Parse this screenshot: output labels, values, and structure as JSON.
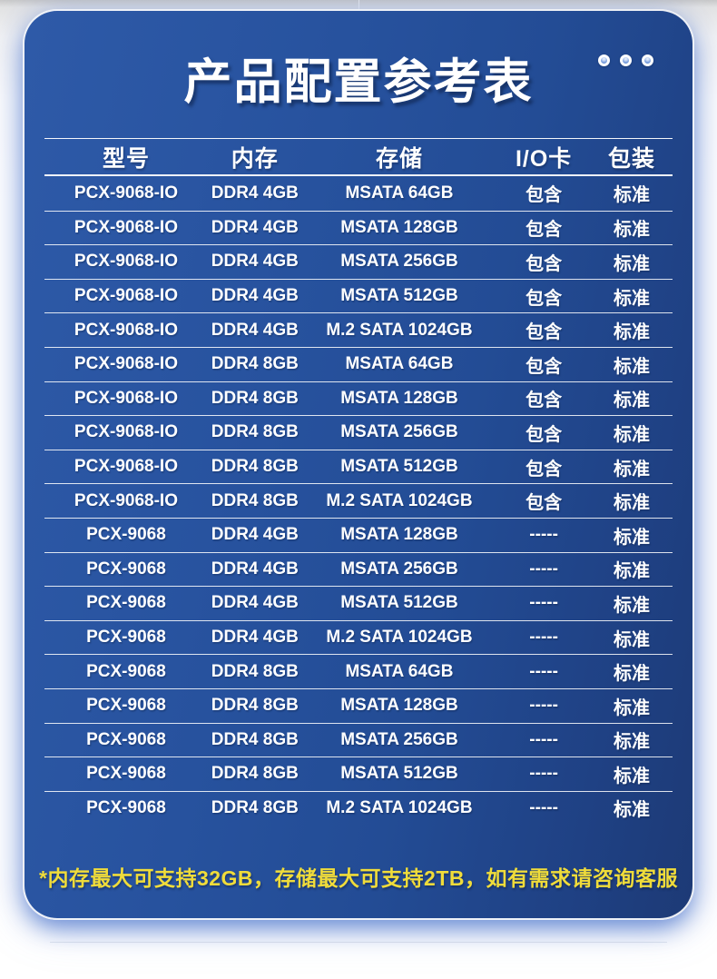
{
  "title": "产品配置参考表",
  "decoration": {
    "dot_icon_count": 3
  },
  "colors": {
    "card_blue": "#27529E",
    "card_blue_dark": "#1D3A76",
    "card_blue_light": "#2E5AA8",
    "line_white": "#FFFFFF",
    "footnote_yellow": "#F0DC3A",
    "page_top_grey": "#C9C9C9"
  },
  "table": {
    "headers": [
      "型号",
      "内存",
      "存储",
      "I/O卡",
      "包装"
    ],
    "rows": [
      [
        "PCX-9068-IO",
        "DDR4 4GB",
        "MSATA 64GB",
        "包含",
        "标准"
      ],
      [
        "PCX-9068-IO",
        "DDR4 4GB",
        "MSATA 128GB",
        "包含",
        "标准"
      ],
      [
        "PCX-9068-IO",
        "DDR4 4GB",
        "MSATA 256GB",
        "包含",
        "标准"
      ],
      [
        "PCX-9068-IO",
        "DDR4 4GB",
        "MSATA 512GB",
        "包含",
        "标准"
      ],
      [
        "PCX-9068-IO",
        "DDR4 4GB",
        "M.2 SATA 1024GB",
        "包含",
        "标准"
      ],
      [
        "PCX-9068-IO",
        "DDR4 8GB",
        "MSATA 64GB",
        "包含",
        "标准"
      ],
      [
        "PCX-9068-IO",
        "DDR4 8GB",
        "MSATA 128GB",
        "包含",
        "标准"
      ],
      [
        "PCX-9068-IO",
        "DDR4 8GB",
        "MSATA 256GB",
        "包含",
        "标准"
      ],
      [
        "PCX-9068-IO",
        "DDR4 8GB",
        "MSATA 512GB",
        "包含",
        "标准"
      ],
      [
        "PCX-9068-IO",
        "DDR4 8GB",
        "M.2 SATA 1024GB",
        "包含",
        "标准"
      ],
      [
        "PCX-9068",
        "DDR4 4GB",
        "MSATA 128GB",
        "-----",
        "标准"
      ],
      [
        "PCX-9068",
        "DDR4 4GB",
        "MSATA 256GB",
        "-----",
        "标准"
      ],
      [
        "PCX-9068",
        "DDR4 4GB",
        "MSATA 512GB",
        "-----",
        "标准"
      ],
      [
        "PCX-9068",
        "DDR4 4GB",
        "M.2 SATA 1024GB",
        "-----",
        "标准"
      ],
      [
        "PCX-9068",
        "DDR4 8GB",
        "MSATA 64GB",
        "-----",
        "标准"
      ],
      [
        "PCX-9068",
        "DDR4 8GB",
        "MSATA 128GB",
        "-----",
        "标准"
      ],
      [
        "PCX-9068",
        "DDR4 8GB",
        "MSATA 256GB",
        "-----",
        "标准"
      ],
      [
        "PCX-9068",
        "DDR4 8GB",
        "MSATA 512GB",
        "-----",
        "标准"
      ],
      [
        "PCX-9068",
        "DDR4 8GB",
        "M.2 SATA 1024GB",
        "-----",
        "标准"
      ]
    ]
  },
  "footnote": "*内存最大可支持32GB，存储最大可支持2TB，如有需求请咨询客服"
}
